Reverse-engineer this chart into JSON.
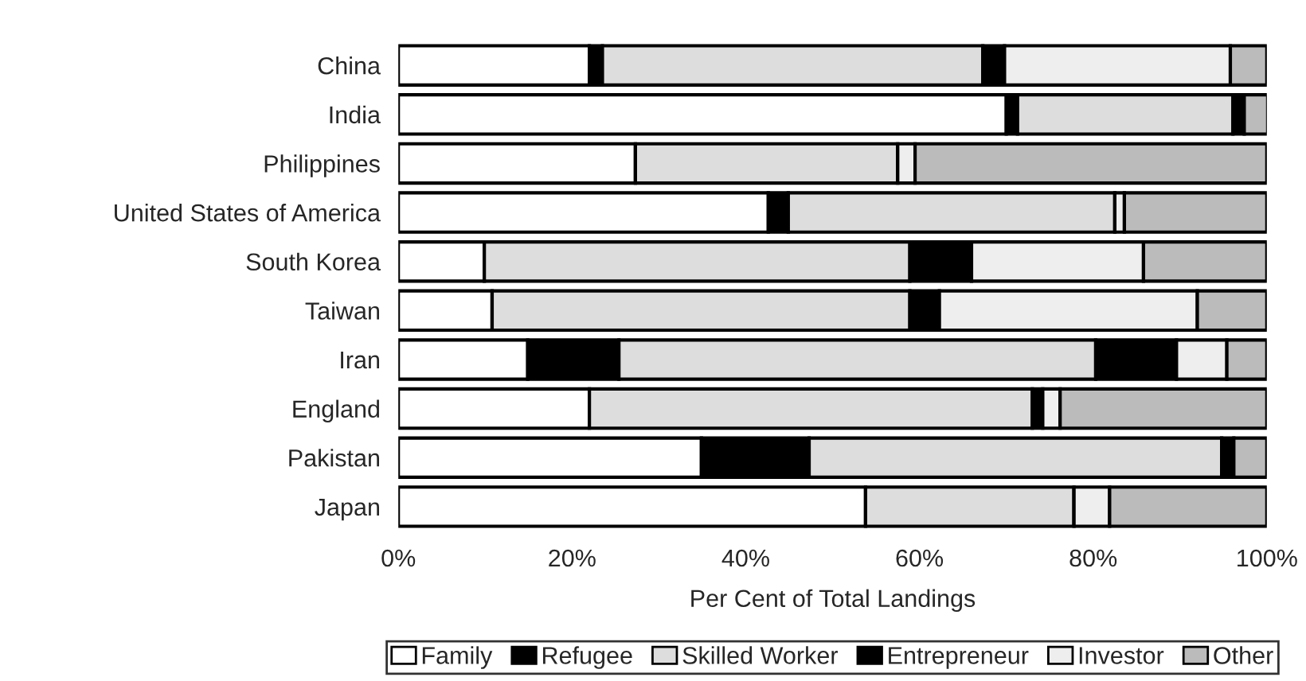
{
  "chart_data": {
    "type": "bar",
    "orientation": "horizontal",
    "stacked": true,
    "xlabel": "Per Cent of Total Landings",
    "categories": [
      "China",
      "India",
      "Philippines",
      "United States of America",
      "South Korea",
      "Taiwan",
      "Iran",
      "England",
      "Pakistan",
      "Japan"
    ],
    "series": [
      {
        "name": "Family",
        "color": "#ffffff",
        "values": [
          22,
          70,
          27.3,
          42.6,
          9.9,
          10.8,
          14.9,
          22,
          34.9,
          53.8
        ]
      },
      {
        "name": "Refugee",
        "color": "#000000",
        "values": [
          1.5,
          1.3,
          0,
          2.3,
          0,
          0,
          10.5,
          0,
          12.4,
          0
        ]
      },
      {
        "name": "Skilled Worker",
        "color": "#dddddd",
        "values": [
          43.8,
          24.8,
          30.2,
          37.6,
          49,
          48.1,
          54.9,
          51,
          47.5,
          24
        ]
      },
      {
        "name": "Entrepreneur",
        "color": "#000000",
        "values": [
          2.5,
          1.3,
          0,
          0,
          7.1,
          3.4,
          9.3,
          1.2,
          1.4,
          0
        ]
      },
      {
        "name": "Investor",
        "color": "#eeeeee",
        "values": [
          26,
          0,
          2,
          1.1,
          19.8,
          29.7,
          5.8,
          2,
          0,
          4.1
        ]
      },
      {
        "name": "Other",
        "color": "#bbbbbb",
        "values": [
          4.2,
          2.7,
          40.5,
          16.4,
          14.2,
          8,
          4.6,
          23.8,
          3.8,
          18.1
        ]
      }
    ],
    "xlim": [
      0,
      100
    ],
    "xticks": [
      {
        "value": 0,
        "label": "0%"
      },
      {
        "value": 20,
        "label": "20%"
      },
      {
        "value": 40,
        "label": "40%"
      },
      {
        "value": 60,
        "label": "60%"
      },
      {
        "value": 80,
        "label": "80%"
      },
      {
        "value": 100,
        "label": "100%"
      }
    ],
    "grid": false,
    "legend": "bottom"
  }
}
